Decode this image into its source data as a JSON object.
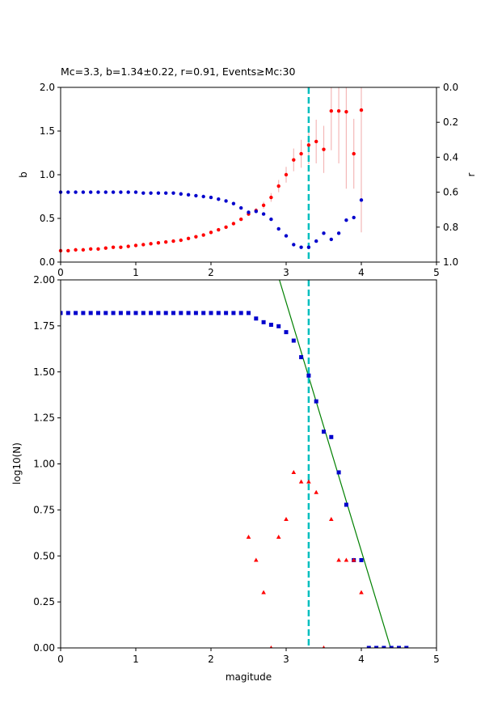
{
  "chart_data": [
    {
      "type": "scatter",
      "title": "Mc=3.3, b=1.34±0.22, r=0.91, Events≥Mc:30",
      "xlabel": "",
      "ylabel": "b",
      "y2label": "r",
      "xlim": [
        0,
        5
      ],
      "ylim": [
        0,
        2
      ],
      "y2lim": [
        1,
        0
      ],
      "y2_inverted": true,
      "xticks": [
        "0",
        "1",
        "2",
        "3",
        "4",
        "5"
      ],
      "yticks": [
        "0.0",
        "0.5",
        "1.0",
        "1.5",
        "2.0"
      ],
      "y2ticks": [
        "0.0",
        "0.2",
        "0.4",
        "0.6",
        "0.8",
        "1.0"
      ],
      "grid": false,
      "mc_line": 3.3,
      "colors": {
        "b": "#ff0000",
        "r": "#0000cc",
        "mc": "#00bfbf",
        "err": "#f4b8b8"
      },
      "series": [
        {
          "axis": "left",
          "marker": "circle",
          "color": "#ff0000",
          "x": [
            0.0,
            0.1,
            0.2,
            0.3,
            0.4,
            0.5,
            0.6,
            0.7,
            0.8,
            0.9,
            1.0,
            1.1,
            1.2,
            1.3,
            1.4,
            1.5,
            1.6,
            1.7,
            1.8,
            1.9,
            2.0,
            2.1,
            2.2,
            2.3,
            2.4,
            2.5,
            2.6,
            2.7,
            2.8,
            2.9,
            3.0,
            3.1,
            3.2,
            3.3,
            3.4,
            3.5,
            3.6,
            3.7,
            3.8,
            3.9,
            4.0
          ],
          "y": [
            0.13,
            0.13,
            0.14,
            0.14,
            0.15,
            0.15,
            0.16,
            0.17,
            0.17,
            0.18,
            0.19,
            0.2,
            0.21,
            0.22,
            0.23,
            0.24,
            0.25,
            0.27,
            0.29,
            0.31,
            0.34,
            0.37,
            0.4,
            0.44,
            0.49,
            0.55,
            0.59,
            0.65,
            0.74,
            0.87,
            1.0,
            1.17,
            1.24,
            1.34,
            1.38,
            1.29,
            1.73,
            1.73,
            1.72,
            1.24,
            1.74
          ],
          "err": [
            0,
            0,
            0,
            0,
            0,
            0,
            0,
            0,
            0,
            0,
            0,
            0,
            0,
            0,
            0,
            0,
            0,
            0,
            0,
            0,
            0,
            0,
            0,
            0,
            0,
            0.02,
            0.03,
            0.04,
            0.05,
            0.07,
            0.09,
            0.13,
            0.16,
            0.22,
            0.25,
            0.27,
            0.45,
            0.6,
            0.88,
            0.4,
            1.4
          ]
        },
        {
          "axis": "right",
          "marker": "circle",
          "color": "#0000cc",
          "x": [
            0.0,
            0.1,
            0.2,
            0.3,
            0.4,
            0.5,
            0.6,
            0.7,
            0.8,
            0.9,
            1.0,
            1.1,
            1.2,
            1.3,
            1.4,
            1.5,
            1.6,
            1.7,
            1.8,
            1.9,
            2.0,
            2.1,
            2.2,
            2.3,
            2.4,
            2.5,
            2.6,
            2.7,
            2.8,
            2.9,
            3.0,
            3.1,
            3.2,
            3.3,
            3.4,
            3.5,
            3.6,
            3.7,
            3.8,
            3.9,
            4.0
          ],
          "y": [
            0.6,
            0.6,
            0.6,
            0.6,
            0.6,
            0.6,
            0.6,
            0.6,
            0.6,
            0.6,
            0.6,
            0.605,
            0.605,
            0.605,
            0.605,
            0.605,
            0.61,
            0.615,
            0.62,
            0.625,
            0.63,
            0.64,
            0.65,
            0.665,
            0.69,
            0.715,
            0.71,
            0.725,
            0.755,
            0.81,
            0.85,
            0.9,
            0.915,
            0.915,
            0.88,
            0.835,
            0.87,
            0.835,
            0.76,
            0.745,
            0.645
          ]
        }
      ]
    },
    {
      "type": "scatter",
      "title": "",
      "xlabel": "magitude",
      "ylabel": "log10(N)",
      "xlim": [
        0,
        5
      ],
      "ylim": [
        0,
        2
      ],
      "xticks": [
        "0",
        "1",
        "2",
        "3",
        "4",
        "5"
      ],
      "yticks": [
        "0.00",
        "0.25",
        "0.50",
        "0.75",
        "1.00",
        "1.25",
        "1.50",
        "1.75",
        "2.00"
      ],
      "grid": false,
      "mc_line": 3.3,
      "fit_line": {
        "x": [
          2.91,
          4.39
        ],
        "y": [
          2.0,
          0.0
        ],
        "color": "#008000"
      },
      "colors": {
        "cumulative": "#0000cc",
        "incremental": "#ff0000",
        "mc": "#00bfbf",
        "fit": "#008000"
      },
      "series": [
        {
          "marker": "square",
          "color": "#0000cc",
          "x": [
            0.0,
            0.1,
            0.2,
            0.3,
            0.4,
            0.5,
            0.6,
            0.7,
            0.8,
            0.9,
            1.0,
            1.1,
            1.2,
            1.3,
            1.4,
            1.5,
            1.6,
            1.7,
            1.8,
            1.9,
            2.0,
            2.1,
            2.2,
            2.3,
            2.4,
            2.5,
            2.6,
            2.7,
            2.8,
            2.9,
            3.0,
            3.1,
            3.2,
            3.3,
            3.4,
            3.5,
            3.6,
            3.7,
            3.8,
            3.9,
            4.0,
            4.1,
            4.2,
            4.3,
            4.4,
            4.5,
            4.6
          ],
          "y": [
            1.82,
            1.82,
            1.82,
            1.82,
            1.82,
            1.82,
            1.82,
            1.82,
            1.82,
            1.82,
            1.82,
            1.82,
            1.82,
            1.82,
            1.82,
            1.82,
            1.82,
            1.82,
            1.82,
            1.82,
            1.82,
            1.82,
            1.82,
            1.82,
            1.82,
            1.82,
            1.79,
            1.77,
            1.756,
            1.748,
            1.716,
            1.67,
            1.58,
            1.48,
            1.34,
            1.175,
            1.146,
            0.954,
            0.778,
            0.477,
            0.477,
            0.0,
            0.0,
            0.0,
            0.0,
            0.0,
            0.0
          ]
        },
        {
          "marker": "triangle",
          "color": "#ff0000",
          "x": [
            2.5,
            2.6,
            2.7,
            2.8,
            2.9,
            3.0,
            3.1,
            3.2,
            3.3,
            3.4,
            3.5,
            3.6,
            3.7,
            3.8,
            3.9,
            4.0
          ],
          "y": [
            0.602,
            0.477,
            0.301,
            0.0,
            0.602,
            0.699,
            0.954,
            0.903,
            0.903,
            0.845,
            0.0,
            0.699,
            0.477,
            0.477,
            0.477,
            0.301
          ]
        }
      ]
    }
  ]
}
